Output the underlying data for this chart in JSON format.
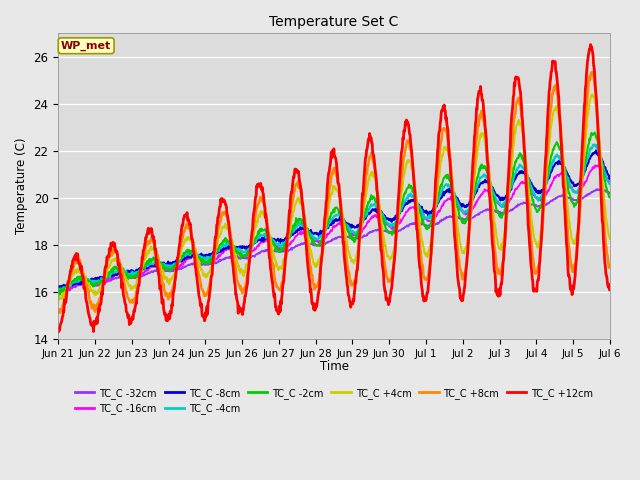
{
  "title": "Temperature Set C",
  "xlabel": "Time",
  "ylabel": "Temperature (C)",
  "ylim": [
    14,
    27
  ],
  "annotation": "WP_met",
  "annotation_color": "#8B0000",
  "annotation_bg": "#FFFFC0",
  "axes_bg": "#DCDCDC",
  "series": [
    {
      "label": "TC_C -32cm",
      "color": "#9933FF"
    },
    {
      "label": "TC_C -16cm",
      "color": "#FF00FF"
    },
    {
      "label": "TC_C -8cm",
      "color": "#0000CC"
    },
    {
      "label": "TC_C -4cm",
      "color": "#00CCCC"
    },
    {
      "label": "TC_C -2cm",
      "color": "#00CC00"
    },
    {
      "label": "TC_C +4cm",
      "color": "#CCCC00"
    },
    {
      "label": "TC_C +8cm",
      "color": "#FF8800"
    },
    {
      "label": "TC_C +12cm",
      "color": "#FF0000"
    }
  ],
  "xtick_labels": [
    "Jun 21",
    "Jun 22",
    "Jun 23",
    "Jun 24",
    "Jun 25",
    "Jun 26",
    "Jun 27",
    "Jun 28",
    "Jun 29",
    "Jun 30",
    "Jul 1",
    "Jul 2",
    "Jul 3",
    "Jul 4",
    "Jul 5",
    "Jul 6"
  ],
  "ytick_vals": [
    14,
    16,
    18,
    20,
    22,
    24,
    26
  ]
}
